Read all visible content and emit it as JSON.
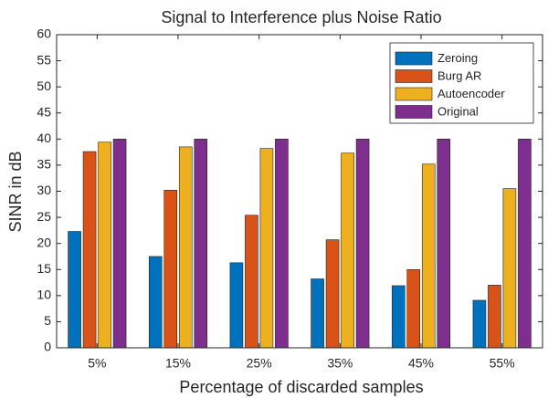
{
  "chart_data": {
    "type": "bar",
    "title": "Signal to Interference plus Noise Ratio",
    "xlabel": "Percentage of discarded samples",
    "ylabel": "SINR in dB",
    "categories": [
      "5%",
      "15%",
      "25%",
      "35%",
      "45%",
      "55%"
    ],
    "series": [
      {
        "name": "Zeroing",
        "color": "#0072bd",
        "values": [
          22.3,
          17.5,
          16.3,
          13.2,
          11.9,
          9.1
        ]
      },
      {
        "name": "Burg AR",
        "color": "#d95319",
        "values": [
          37.6,
          30.2,
          25.4,
          20.7,
          15.0,
          12.0
        ]
      },
      {
        "name": "Autoencoder",
        "color": "#edb120",
        "values": [
          39.4,
          38.5,
          38.2,
          37.3,
          35.2,
          30.5
        ]
      },
      {
        "name": "Original",
        "color": "#7e2f8e",
        "values": [
          40,
          40,
          40,
          40,
          40,
          40
        ]
      }
    ],
    "ylim": [
      0,
      60
    ],
    "yticks": [
      0,
      5,
      10,
      15,
      20,
      25,
      30,
      35,
      40,
      45,
      50,
      55,
      60
    ],
    "legend": "upper right"
  }
}
